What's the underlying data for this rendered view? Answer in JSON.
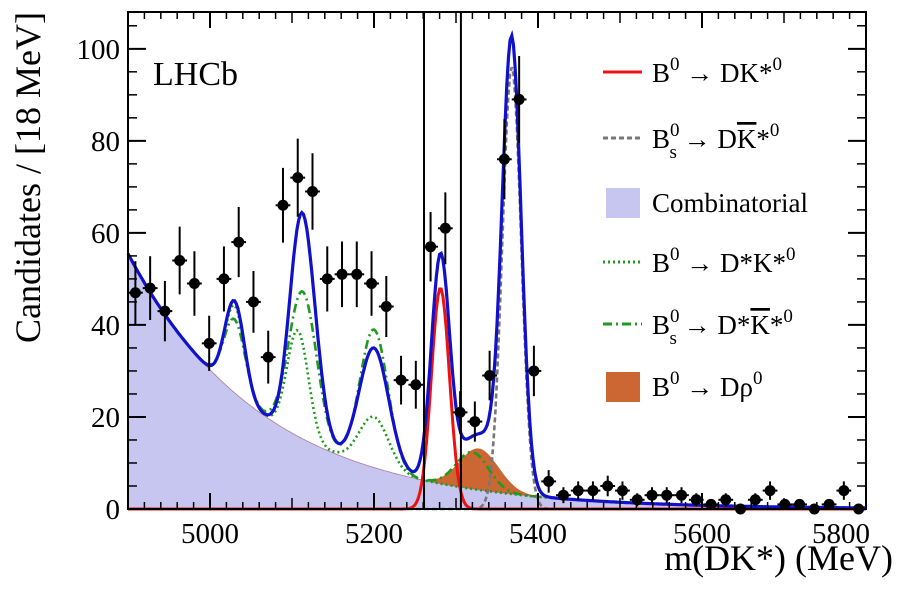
{
  "chart_data": {
    "type": "scatter",
    "experiment_label": "LHCb",
    "xlabel": "m(DK*) (MeV)",
    "ylabel": "Candidates / [18 MeV]",
    "xlim": [
      4900,
      5800
    ],
    "ylim": [
      0,
      108
    ],
    "xticks": [
      5000,
      5200,
      5400,
      5600,
      5800
    ],
    "xtick_labels": [
      "5000",
      "5200",
      "5400",
      "5600",
      "5800"
    ],
    "yticks": [
      0,
      20,
      40,
      60,
      80,
      100
    ],
    "ytick_labels": [
      "0",
      "20",
      "40",
      "60",
      "80",
      "100"
    ],
    "grid": false,
    "legend_position": "right",
    "signal_window": [
      5261,
      5306
    ],
    "data_points": {
      "x": [
        4909,
        4927,
        4945,
        4963,
        4981,
        4999,
        5017,
        5035,
        5053,
        5071,
        5089,
        5107,
        5125,
        5143,
        5161,
        5179,
        5197,
        5215,
        5233,
        5251,
        5269,
        5287,
        5305,
        5323,
        5341,
        5359,
        5377,
        5395,
        5413,
        5431,
        5449,
        5467,
        5485,
        5503,
        5521,
        5539,
        5557,
        5575,
        5593,
        5611,
        5629,
        5647,
        5665,
        5683,
        5701,
        5719,
        5737,
        5755,
        5773,
        5791
      ],
      "y": [
        47,
        48,
        43,
        54,
        49,
        36,
        50,
        58,
        45,
        33,
        66,
        72,
        69,
        50,
        51,
        51,
        49,
        44,
        28,
        27,
        57,
        61,
        21,
        19,
        29,
        76,
        89,
        30,
        6,
        3,
        4,
        4,
        5,
        4,
        2,
        3,
        3,
        3,
        2,
        1,
        2,
        0,
        2,
        4,
        1,
        1,
        0,
        1,
        4,
        0
      ],
      "xerr": 9
    },
    "series": [
      {
        "name": "B⁰→ DK*⁰",
        "style": "solid",
        "color": "#ee1111"
      },
      {
        "name": "B⁰ₛ→ DK̅*⁰",
        "style": "dashed",
        "color": "#777777"
      },
      {
        "name": "Combinatorial",
        "style": "filled",
        "color": "#c6c6f0"
      },
      {
        "name": "B⁰→ D*K*⁰",
        "style": "dotted",
        "color": "#1f9a1f"
      },
      {
        "name": "B⁰ₛ→ D*K̅*⁰",
        "style": "dashdot",
        "color": "#1f9a1f"
      },
      {
        "name": "B⁰→ Dρ⁰",
        "style": "filled",
        "color": "#cc6633"
      },
      {
        "name": "",
        "style": "solid",
        "color": "#1111cc",
        "role": "total"
      }
    ],
    "legend": [
      {
        "base": "B",
        "sup1": "0",
        "sub1": "",
        "rest": "→ DK*",
        "bar": "",
        "tail": "",
        "sup2": "0"
      },
      {
        "base": "B",
        "sup1": "0",
        "sub1": "s",
        "rest": "→ D",
        "bar": "K",
        "tail": "*",
        "sup2": "0"
      },
      {
        "base": "Combinatorial",
        "sup1": "",
        "sub1": "",
        "rest": "",
        "bar": "",
        "tail": "",
        "sup2": ""
      },
      {
        "base": "B",
        "sup1": "0",
        "sub1": "",
        "rest": "→ D*K*",
        "bar": "",
        "tail": "",
        "sup2": "0"
      },
      {
        "base": "B",
        "sup1": "0",
        "sub1": "s",
        "rest": "→ D*",
        "bar": "K",
        "tail": "*",
        "sup2": "0"
      },
      {
        "base": "B",
        "sup1": "0",
        "sub1": "",
        "rest": "→ Dρ",
        "bar": "",
        "tail": "",
        "sup2": "0"
      }
    ]
  }
}
